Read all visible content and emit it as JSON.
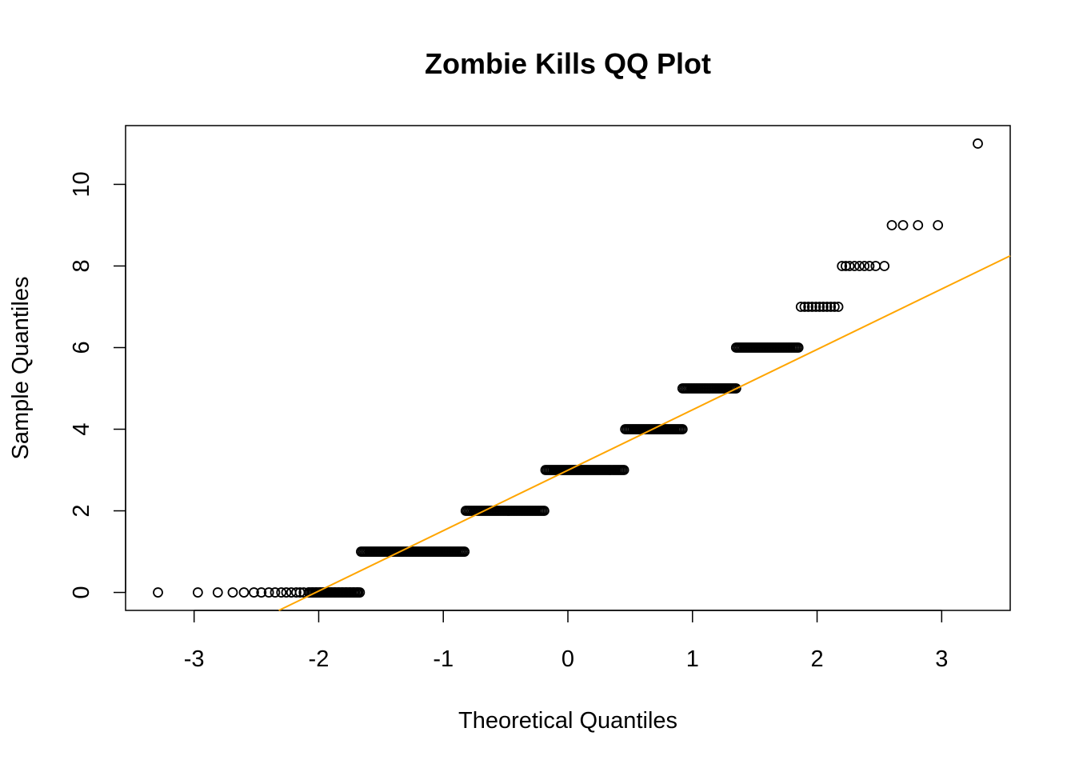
{
  "chart_data": {
    "type": "scatter",
    "title": "Zombie Kills QQ Plot",
    "xlabel": "Theoretical Quantiles",
    "ylabel": "Sample Quantiles",
    "xlim": [
      -3.55,
      3.55
    ],
    "ylim": [
      -0.44,
      11.44
    ],
    "xticks": [
      "-3",
      "-2",
      "-1",
      "0",
      "1",
      "2",
      "3"
    ],
    "yticks": [
      "0",
      "2",
      "4",
      "6",
      "8",
      "10"
    ],
    "grid": false,
    "legend": "none",
    "colors": {
      "points": "#000000",
      "reference_line": "#FFA500",
      "frame": "#000000"
    },
    "series": [
      {
        "marker": "open-circle",
        "points": [
          {
            "x": -3.29,
            "y": 0
          },
          {
            "x": -2.97,
            "y": 0
          },
          {
            "x": -2.81,
            "y": 0
          },
          {
            "x": -2.69,
            "y": 0
          },
          {
            "x": -2.6,
            "y": 0
          },
          {
            "x": -2.52,
            "y": 0
          },
          {
            "x": -2.46,
            "y": 0
          },
          {
            "x": -2.4,
            "y": 0
          },
          {
            "x": -2.35,
            "y": 0
          },
          {
            "x": -2.3,
            "y": 0
          },
          {
            "x": -2.26,
            "y": 0
          },
          {
            "x": -2.22,
            "y": 0
          },
          {
            "x": -2.18,
            "y": 0
          },
          {
            "x": -2.15,
            "y": 0
          },
          {
            "x": -2.12,
            "y": 0
          },
          {
            "x": -2.08,
            "y": 0
          },
          {
            "x": -2.05,
            "y": 0
          },
          {
            "x": -2.02,
            "y": 0
          },
          {
            "x": -1.99,
            "y": 0
          },
          {
            "x": -1.96,
            "y": 0
          },
          {
            "x": -1.93,
            "y": 0
          },
          {
            "x": -1.9,
            "y": 0
          },
          {
            "x": -1.87,
            "y": 0
          },
          {
            "x": -1.84,
            "y": 0
          },
          {
            "x": -1.81,
            "y": 0
          },
          {
            "x": -1.78,
            "y": 0
          },
          {
            "x": -1.75,
            "y": 0
          },
          {
            "x": -1.72,
            "y": 0
          },
          {
            "x": -1.69,
            "y": 0
          },
          {
            "x": 1.87,
            "y": 7
          },
          {
            "x": 1.9,
            "y": 7
          },
          {
            "x": 1.93,
            "y": 7
          },
          {
            "x": 1.96,
            "y": 7
          },
          {
            "x": 1.99,
            "y": 7
          },
          {
            "x": 2.02,
            "y": 7
          },
          {
            "x": 2.05,
            "y": 7
          },
          {
            "x": 2.08,
            "y": 7
          },
          {
            "x": 2.11,
            "y": 7
          },
          {
            "x": 2.14,
            "y": 7
          },
          {
            "x": 2.17,
            "y": 7
          },
          {
            "x": 2.2,
            "y": 8
          },
          {
            "x": 2.23,
            "y": 8
          },
          {
            "x": 2.26,
            "y": 8
          },
          {
            "x": 2.3,
            "y": 8
          },
          {
            "x": 2.34,
            "y": 8
          },
          {
            "x": 2.38,
            "y": 8
          },
          {
            "x": 2.42,
            "y": 8
          },
          {
            "x": 2.47,
            "y": 8
          },
          {
            "x": 2.54,
            "y": 8
          },
          {
            "x": 2.6,
            "y": 9
          },
          {
            "x": 2.69,
            "y": 9
          },
          {
            "x": 2.81,
            "y": 9
          },
          {
            "x": 2.97,
            "y": 9
          },
          {
            "x": 3.29,
            "y": 11
          }
        ],
        "dense_segments": [
          {
            "y": 0,
            "x_from": -2.08,
            "x_to": -1.67
          },
          {
            "y": 1,
            "x_from": -1.66,
            "x_to": -0.83
          },
          {
            "y": 2,
            "x_from": -0.82,
            "x_to": -0.19
          },
          {
            "y": 3,
            "x_from": -0.18,
            "x_to": 0.45
          },
          {
            "y": 4,
            "x_from": 0.46,
            "x_to": 0.92
          },
          {
            "y": 5,
            "x_from": 0.92,
            "x_to": 1.35
          },
          {
            "y": 6,
            "x_from": 1.35,
            "x_to": 1.85
          }
        ]
      }
    ],
    "reference_line": {
      "x1": -2.32,
      "y1": -0.44,
      "x2": 3.55,
      "y2": 8.25
    }
  }
}
